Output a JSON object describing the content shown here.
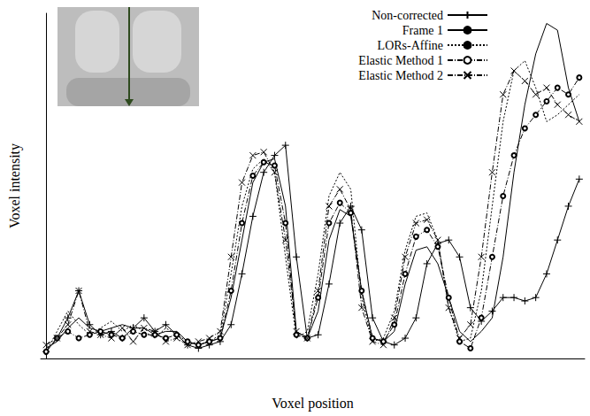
{
  "chart_data": {
    "type": "line",
    "xlabel": "Voxel position",
    "ylabel": "Voxel intensity",
    "x": [
      0,
      1,
      2,
      3,
      4,
      5,
      6,
      7,
      8,
      9,
      10,
      11,
      12,
      13,
      14,
      15,
      16,
      17,
      18,
      19,
      20,
      21,
      22,
      23,
      24,
      25,
      26,
      27,
      28,
      29,
      30,
      31,
      32,
      33,
      34,
      35,
      36,
      37,
      38,
      39,
      40,
      41,
      42,
      43,
      44,
      45,
      46,
      47,
      48,
      49
    ],
    "xlim": [
      -0.5,
      49.5
    ],
    "ylim": [
      0,
      102
    ],
    "tick_labels": false,
    "grid": false,
    "legend": "top",
    "series": [
      {
        "name": "Non-corrected",
        "color": "#000000",
        "marker": "plus",
        "line_style": "solid",
        "values": [
          2,
          6,
          12,
          20,
          10,
          7,
          8,
          6,
          9,
          12,
          8,
          10,
          7,
          4,
          3,
          4,
          5,
          10,
          25,
          42,
          55,
          60,
          63,
          30,
          6,
          7,
          22,
          40,
          45,
          38,
          12,
          5,
          4,
          6,
          12,
          28,
          34,
          35,
          30,
          15,
          11,
          14,
          18,
          18,
          17,
          18,
          25,
          35,
          45,
          53
        ]
      },
      {
        "name": "Frame 1",
        "color": "#000000",
        "marker": "none",
        "line_style": "solid",
        "values": [
          3,
          5,
          9,
          12,
          9,
          8,
          9,
          10,
          9,
          9,
          7,
          8,
          8,
          5,
          4,
          5,
          6,
          18,
          35,
          52,
          58,
          59,
          45,
          8,
          6,
          14,
          35,
          44,
          42,
          20,
          6,
          5,
          8,
          22,
          32,
          33,
          28,
          18,
          8,
          5,
          8,
          12,
          30,
          55,
          75,
          90,
          99,
          97,
          80,
          70
        ]
      },
      {
        "name": "LORs-Affine",
        "color": "#000000",
        "marker": "none",
        "line_style": "dotted",
        "values": [
          2,
          8,
          14,
          10,
          7,
          9,
          11,
          8,
          10,
          8,
          6,
          9,
          7,
          5,
          4,
          5,
          7,
          25,
          45,
          56,
          59,
          55,
          30,
          6,
          8,
          25,
          48,
          55,
          50,
          18,
          5,
          6,
          14,
          32,
          42,
          43,
          35,
          15,
          5,
          6,
          20,
          45,
          70,
          85,
          88,
          80,
          70,
          72,
          75,
          78
        ]
      },
      {
        "name": "Elastic Method 1",
        "color": "#000000",
        "marker": "circle",
        "line_style": "dashdot",
        "values": [
          2,
          6,
          8,
          6,
          7,
          8,
          7,
          6,
          8,
          7,
          7,
          6,
          7,
          5,
          4,
          5,
          6,
          20,
          40,
          54,
          58,
          57,
          40,
          7,
          6,
          18,
          40,
          46,
          43,
          20,
          6,
          5,
          10,
          25,
          36,
          38,
          33,
          18,
          5,
          3,
          12,
          30,
          48,
          60,
          68,
          72,
          76,
          80,
          78,
          83
        ]
      },
      {
        "name": "Elastic Method 2",
        "color": "#000000",
        "marker": "x",
        "line_style": "dashdot",
        "values": [
          4,
          6,
          10,
          20,
          8,
          7,
          6,
          9,
          5,
          9,
          8,
          5,
          6,
          4,
          5,
          6,
          8,
          30,
          52,
          60,
          61,
          55,
          35,
          8,
          6,
          20,
          45,
          50,
          44,
          15,
          5,
          4,
          12,
          30,
          40,
          41,
          35,
          15,
          6,
          10,
          30,
          55,
          78,
          85,
          82,
          78,
          80,
          75,
          72,
          70
        ]
      }
    ]
  }
}
